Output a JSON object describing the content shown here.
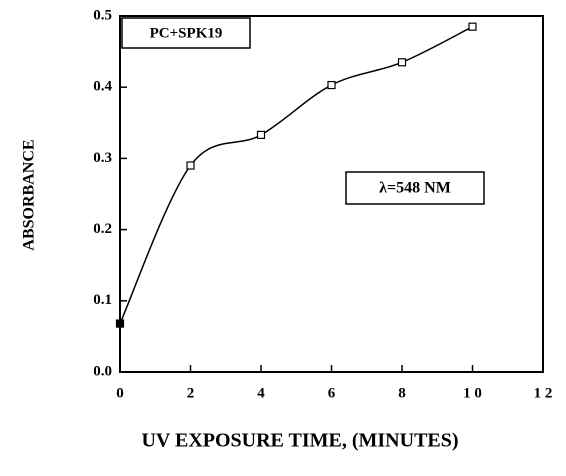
{
  "chart_data": {
    "type": "line",
    "x": [
      0,
      2,
      4,
      6,
      8,
      10
    ],
    "series": [
      {
        "name": "PC+SPK19",
        "color": "#000000",
        "values": [
          0.068,
          0.29,
          0.333,
          0.403,
          0.435,
          0.485
        ]
      }
    ],
    "xlim": [
      0,
      12
    ],
    "xticks": [
      0,
      2,
      4,
      6,
      8,
      {
        "value": 10,
        "label": "1 0"
      },
      {
        "value": 12,
        "label": "1 2"
      }
    ],
    "ylim": [
      0,
      0.5
    ],
    "yticks": [
      {
        "value": 0,
        "label": "0.0"
      },
      0.1,
      0.2,
      0.3,
      0.4,
      0.5
    ],
    "xlabel": "UV EXPOSURE TIME, (MINUTES)",
    "ylabel": "ABSORBANCE",
    "annotations": [
      "λ=548 NM"
    ]
  }
}
